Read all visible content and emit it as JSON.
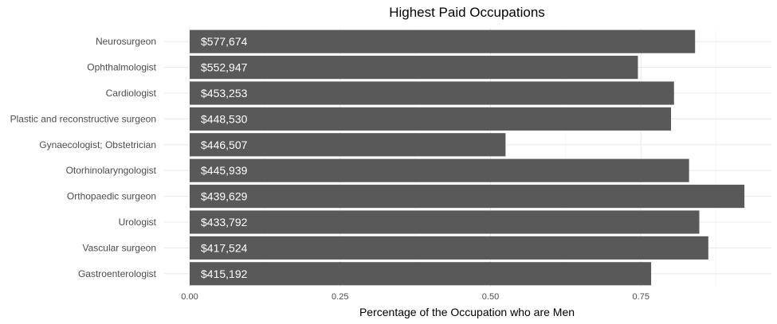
{
  "chart_data": {
    "type": "bar",
    "orientation": "horizontal",
    "title": "Highest Paid Occupations",
    "xlabel": "Percentage of the Occupation who are Men",
    "ylabel": "",
    "xlim": [
      0,
      0.95
    ],
    "xticks": [
      "0.00",
      "0.25",
      "0.50",
      "0.75"
    ],
    "xtick_values": [
      0,
      0.25,
      0.5,
      0.75
    ],
    "grid": true,
    "bar_color": "#595959",
    "categories": [
      "Neurosurgeon",
      "Ophthalmologist",
      "Cardiologist",
      "Plastic and reconstructive surgeon",
      "Gynaecologist; Obstetrician",
      "Otorhinolaryngologist",
      "Orthopaedic surgeon",
      "Urologist",
      "Vascular surgeon",
      "Gastroenterologist"
    ],
    "values": [
      0.84,
      0.745,
      0.805,
      0.8,
      0.525,
      0.83,
      0.922,
      0.847,
      0.862,
      0.767
    ],
    "data_labels": [
      "$577,674",
      "$552,947",
      "$453,253",
      "$448,530",
      "$446,507",
      "$445,939",
      "$439,629",
      "$433,792",
      "$417,524",
      "$415,192"
    ]
  }
}
